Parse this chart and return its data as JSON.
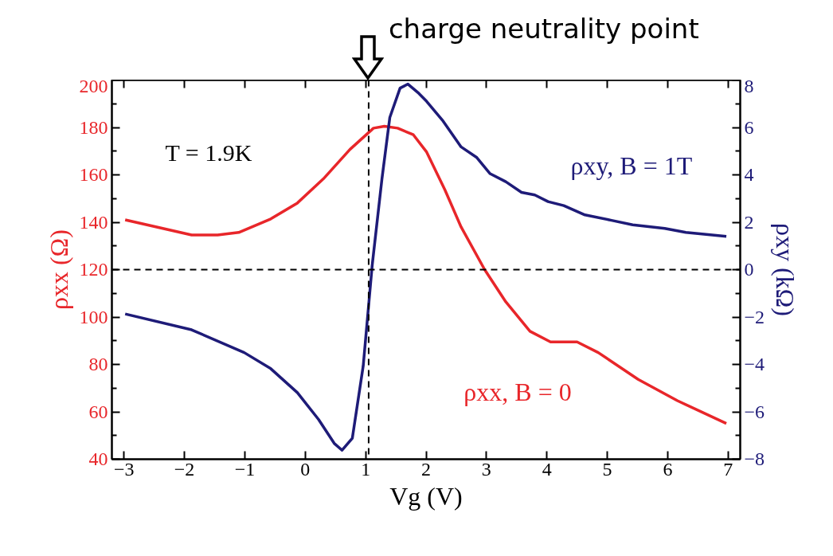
{
  "chart_data": {
    "type": "line",
    "xlabel": "Vg (V)",
    "ylabel": "ρxx (Ω)",
    "y2label": "ρxy (kΩ)",
    "xlim": [
      -3.2,
      7.2
    ],
    "xticks": [
      -3,
      -2,
      -1,
      0,
      1,
      2,
      3,
      4,
      5,
      6,
      7
    ],
    "ylim": [
      40,
      200
    ],
    "yticks": [
      40,
      60,
      80,
      100,
      120,
      140,
      160,
      180,
      200
    ],
    "y2lim": [
      -8,
      8
    ],
    "y2ticks": [
      -8,
      -6,
      -4,
      -2,
      0,
      2,
      4,
      6,
      8
    ],
    "grid": false,
    "legend": false,
    "marker": "none",
    "line_style": "solid",
    "series": [
      {
        "name": "ρxx, B = 0",
        "color": "#e8262a",
        "x": [
          -2.98,
          -1.88,
          -1.45,
          -1.1,
          -0.57,
          -0.13,
          0.3,
          0.74,
          1.13,
          1.31,
          1.53,
          1.79,
          2.01,
          2.31,
          2.58,
          2.97,
          3.32,
          3.72,
          4.06,
          4.5,
          4.85,
          5.51,
          6.16,
          6.97
        ],
        "values": [
          141,
          134.6,
          134.6,
          135.7,
          141.4,
          148.1,
          158.3,
          170.7,
          179.7,
          180.5,
          179.7,
          176.9,
          169.6,
          153.8,
          138,
          120,
          106.4,
          94,
          89.5,
          89.5,
          85,
          73.7,
          64.7,
          55.1
        ]
      },
      {
        "name": "ρxy, B = 1T",
        "color": "#1e1b78",
        "axis": "y2",
        "x": [
          -2.98,
          -1.88,
          -1.01,
          -0.57,
          -0.13,
          0.22,
          0.48,
          0.61,
          0.78,
          0.96,
          1.11,
          1.27,
          1.4,
          1.57,
          1.7,
          1.88,
          2.01,
          2.27,
          2.58,
          2.84,
          3.06,
          3.32,
          3.58,
          3.8,
          4.02,
          4.28,
          4.63,
          5.07,
          5.42,
          5.95,
          6.3,
          6.97
        ],
        "values": [
          -1.87,
          -2.54,
          -3.5,
          -4.18,
          -5.19,
          -6.32,
          -7.33,
          -7.62,
          -7.11,
          -4.06,
          0.22,
          3.83,
          6.42,
          7.66,
          7.83,
          7.44,
          7.1,
          6.31,
          5.18,
          4.73,
          4.05,
          3.71,
          3.26,
          3.15,
          2.87,
          2.7,
          2.31,
          2.08,
          1.89,
          1.74,
          1.57,
          1.4
        ]
      }
    ],
    "ref_lines": [
      {
        "axis": "x",
        "value": 1.05,
        "label": "charge neutrality point",
        "color": "#000000",
        "line_style": "dashed"
      },
      {
        "axis": "y",
        "value": 120,
        "label": null,
        "color": "#000000",
        "line_style": "dashed"
      }
    ],
    "annotations": [
      "T = 1.9K"
    ]
  }
}
